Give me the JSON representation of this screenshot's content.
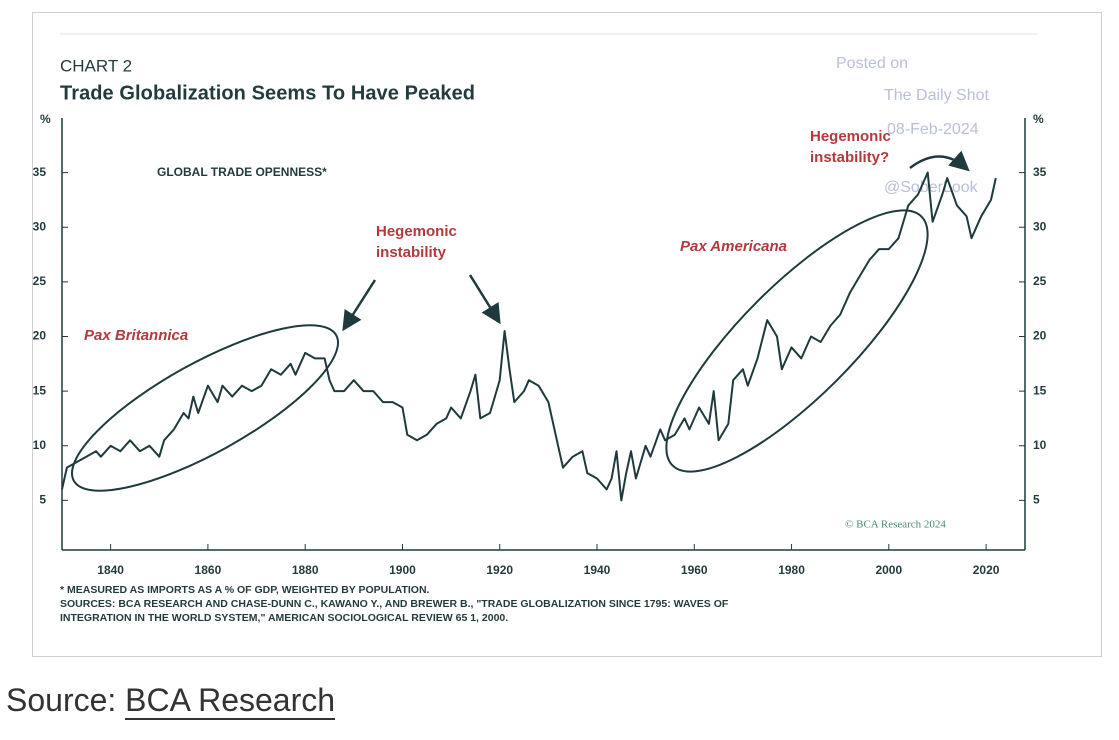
{
  "chart_data": {
    "type": "line",
    "kicker": "CHART 2",
    "title": "Trade Globalization Seems To Have Peaked",
    "subtitle": "GLOBAL TRADE OPENNESS*",
    "y_unit": "%",
    "color": "#1f3a3d",
    "x": [
      1830,
      1831,
      1833,
      1835,
      1837,
      1838,
      1840,
      1842,
      1844,
      1846,
      1848,
      1850,
      1851,
      1853,
      1855,
      1856,
      1857,
      1858,
      1860,
      1862,
      1863,
      1865,
      1867,
      1869,
      1871,
      1873,
      1875,
      1877,
      1878,
      1880,
      1882,
      1884,
      1885,
      1886,
      1888,
      1890,
      1892,
      1894,
      1896,
      1898,
      1900,
      1901,
      1903,
      1905,
      1907,
      1909,
      1910,
      1912,
      1914,
      1915,
      1916,
      1918,
      1919,
      1920,
      1921,
      1922,
      1923,
      1925,
      1926,
      1928,
      1930,
      1932,
      1933,
      1935,
      1937,
      1938,
      1940,
      1942,
      1943,
      1944,
      1945,
      1946,
      1947,
      1948,
      1950,
      1951,
      1953,
      1954,
      1956,
      1958,
      1959,
      1961,
      1963,
      1964,
      1965,
      1967,
      1968,
      1970,
      1971,
      1973,
      1975,
      1977,
      1978,
      1980,
      1982,
      1984,
      1986,
      1988,
      1990,
      1992,
      1994,
      1996,
      1998,
      2000,
      2002,
      2004,
      2006,
      2008,
      2009,
      2011,
      2012,
      2014,
      2016,
      2017,
      2019,
      2021,
      2022
    ],
    "values": [
      6,
      8,
      8.5,
      9,
      9.5,
      9,
      10,
      9.5,
      10.5,
      9.5,
      10,
      9,
      10.5,
      11.5,
      13,
      12.5,
      14.5,
      13,
      15.5,
      14,
      15.5,
      14.5,
      15.5,
      15,
      15.5,
      17,
      16.5,
      17.5,
      16.5,
      18.5,
      18,
      18,
      16,
      15,
      15,
      16,
      15,
      15,
      14,
      14,
      13.5,
      11,
      10.5,
      11,
      12,
      12.5,
      13.5,
      12.5,
      15,
      16.5,
      12.5,
      13,
      14.5,
      16,
      20.5,
      17,
      14,
      15,
      16,
      15.5,
      14,
      10,
      8,
      9,
      9.5,
      7.5,
      7,
      6,
      7,
      9.5,
      5,
      7.5,
      9.5,
      7,
      10,
      9,
      11.5,
      10.5,
      11,
      12.5,
      11.5,
      13.5,
      12,
      15,
      10.5,
      12,
      16,
      17,
      15.5,
      18,
      21.5,
      20,
      17,
      19,
      18,
      20,
      19.5,
      21,
      22,
      24,
      25.5,
      27,
      28,
      28,
      29,
      32,
      33,
      35,
      30.5,
      33,
      34.5,
      32,
      31,
      29,
      31,
      32.5,
      34.5
    ],
    "xlim": [
      1830,
      2028
    ],
    "ylim": [
      0,
      40
    ],
    "xticks": [
      1840,
      1860,
      1880,
      1900,
      1920,
      1940,
      1960,
      1980,
      2000,
      2020
    ],
    "yticks": [
      5,
      10,
      15,
      20,
      25,
      30,
      35
    ],
    "annotations": [
      [
        "Pax Britannica"
      ],
      [
        "Hegemonic",
        "instability"
      ],
      [
        "Pax Americana"
      ],
      [
        "Hegemonic",
        "instability?"
      ]
    ],
    "credit": "© BCA Research 2024",
    "notes": [
      "* MEASURED AS IMPORTS AS A % OF GDP, WEIGHTED BY POPULATION.",
      "SOURCES: BCA RESEARCH AND CHASE-DUNN C., KAWANO Y., AND BREWER B., \"TRADE GLOBALIZATION SINCE 1795: WAVES OF",
      "INTEGRATION IN THE WORLD SYSTEM,\" AMERICAN SOCIOLOGICAL REVIEW 65 1, 2000."
    ]
  },
  "watermark": [
    "Posted on",
    "The Daily Shot",
    "08-Feb-2024",
    "@SoberLook"
  ],
  "source": {
    "label": "Source:",
    "link": "BCA Research"
  }
}
